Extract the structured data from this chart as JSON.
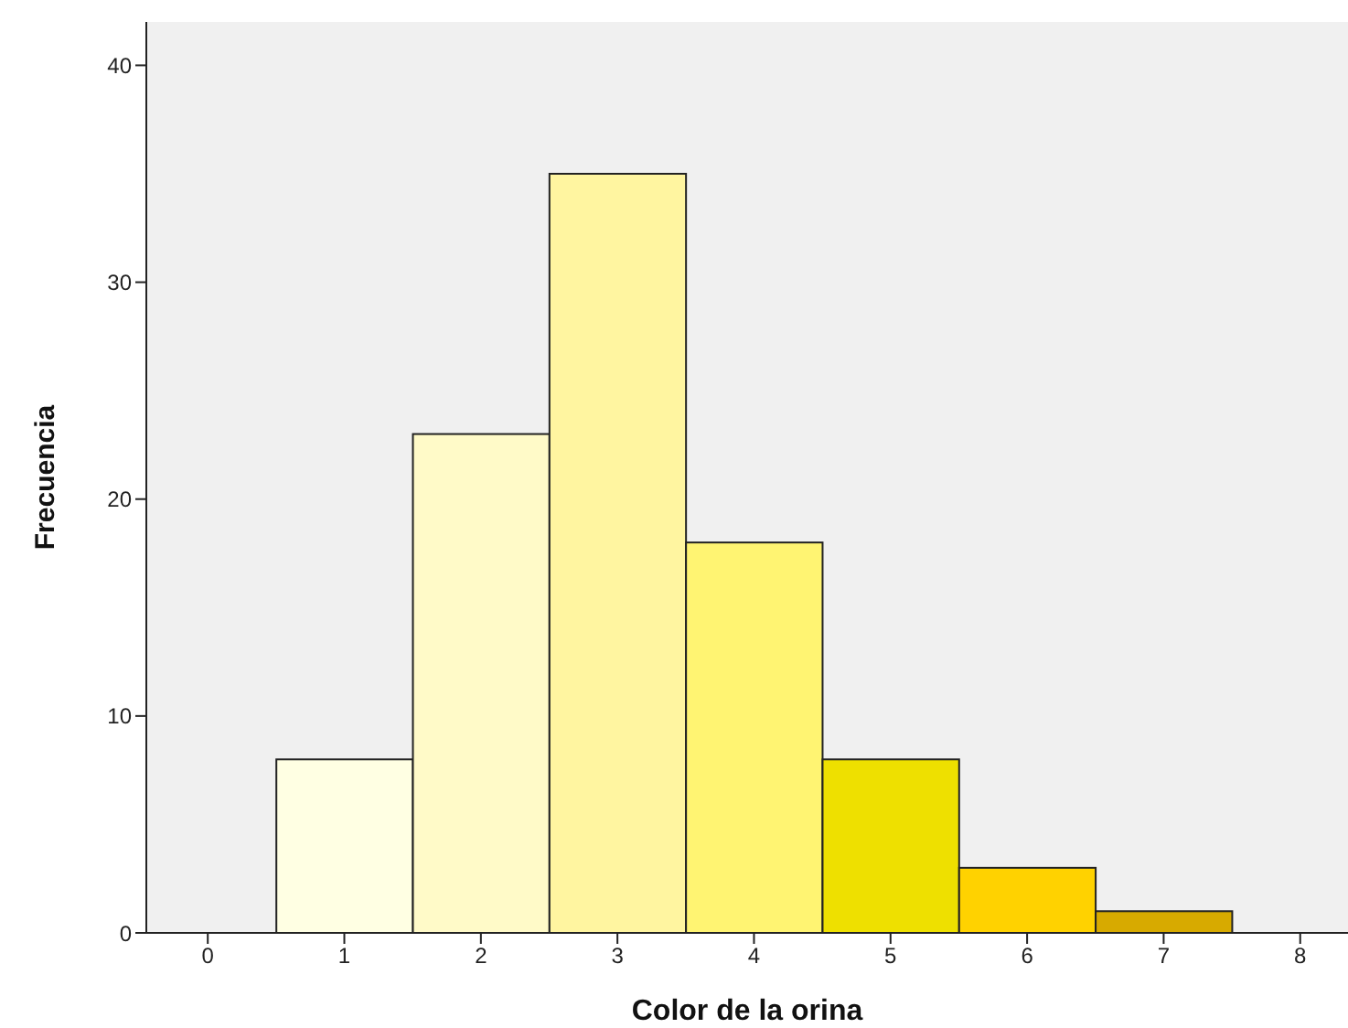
{
  "chart_data": {
    "type": "histogram",
    "xlabel": "Color de la orina",
    "ylabel": "Frecuencia",
    "bins": [
      0.5,
      1.5,
      2.5,
      3.5,
      4.5,
      5.5,
      6.5,
      7.5
    ],
    "values": [
      8,
      23,
      35,
      18,
      8,
      3,
      1
    ],
    "colors": [
      "#ffffe3",
      "#fffac8",
      "#fff5a0",
      "#fff472",
      "#eee000",
      "#ffd200",
      "#d7aa00"
    ],
    "xlim": [
      -0.45,
      8.35
    ],
    "xticks": [
      0,
      1,
      2,
      3,
      4,
      5,
      6,
      7,
      8
    ],
    "ylim": [
      0,
      42
    ],
    "yticks": [
      0,
      10,
      20,
      30,
      40
    ],
    "grid": false
  }
}
